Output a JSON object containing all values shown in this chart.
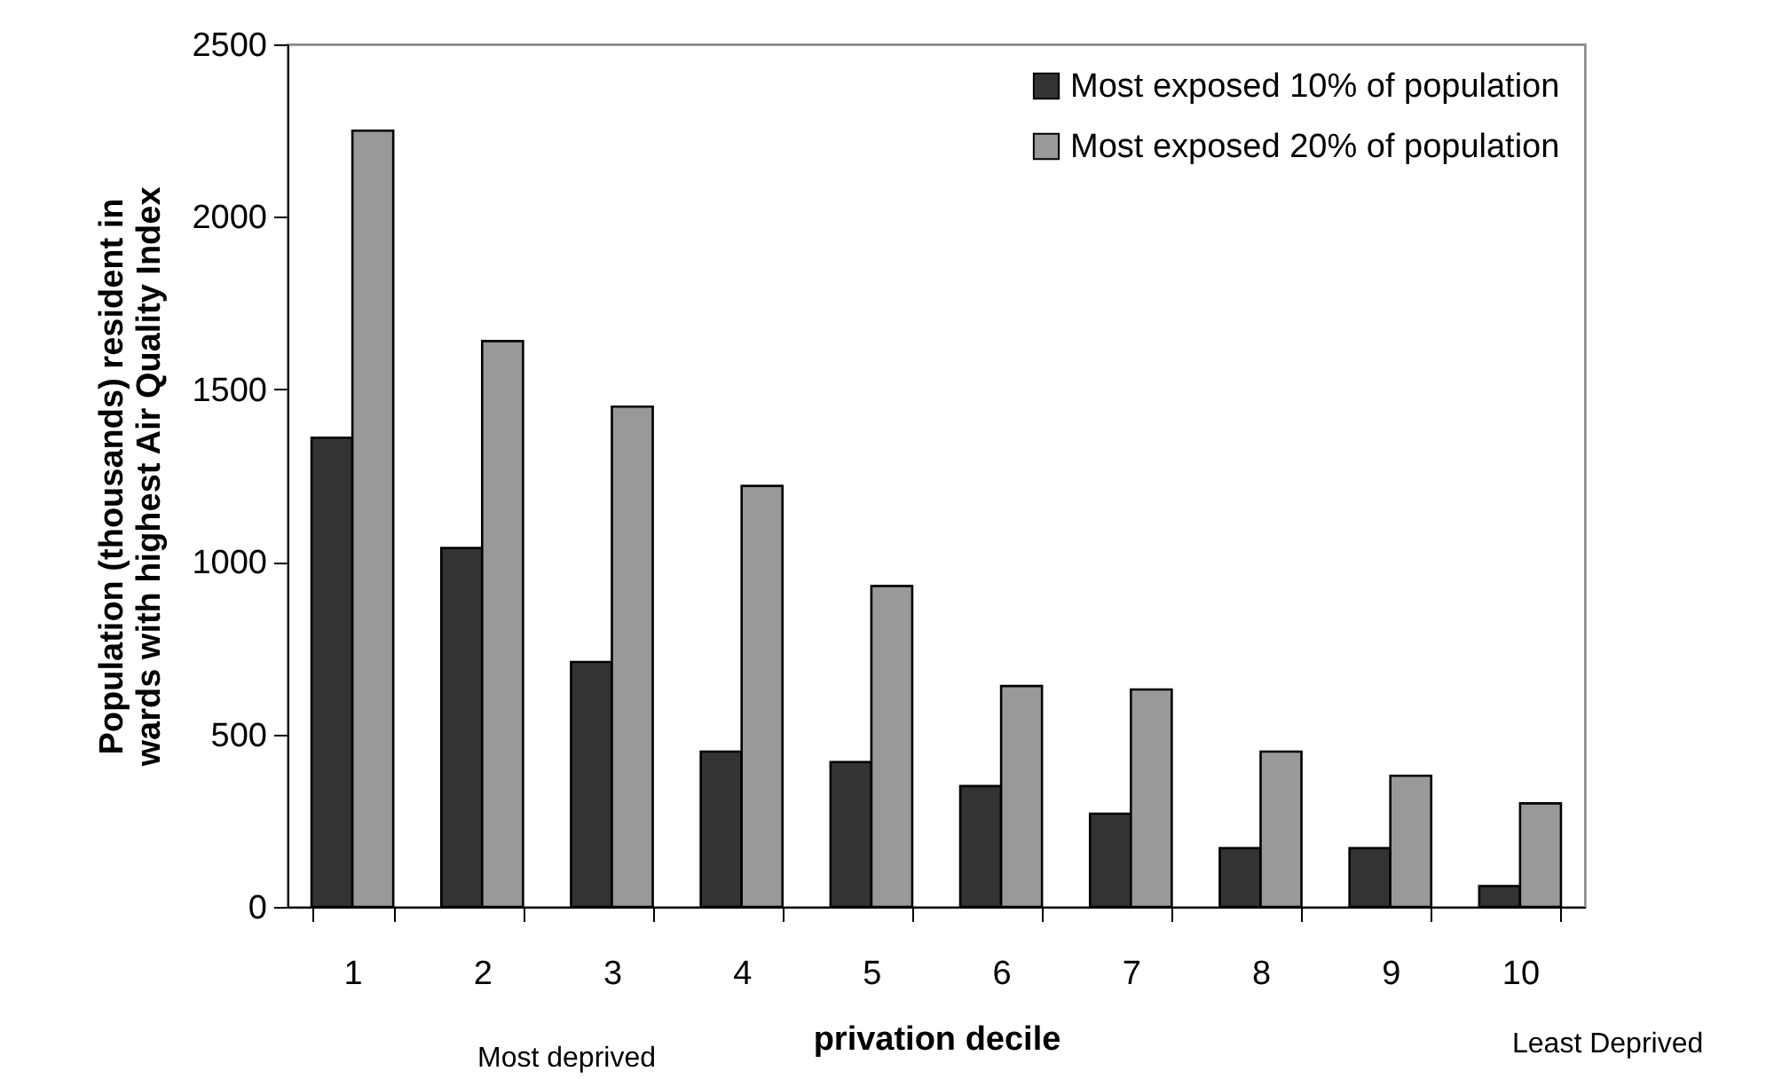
{
  "chart_data": {
    "type": "bar",
    "xlabel": "privation decile",
    "ylabel": "Population (thousands) resident in wards with highest Air Quality Index",
    "categories": [
      "1",
      "2",
      "3",
      "4",
      "5",
      "6",
      "7",
      "8",
      "9",
      "10"
    ],
    "series": [
      {
        "name": "Most exposed 10% of population",
        "color": "#333333",
        "values": [
          1360,
          1040,
          710,
          450,
          420,
          350,
          270,
          170,
          170,
          60
        ]
      },
      {
        "name": "Most exposed 20% of population",
        "color": "#999999",
        "values": [
          2250,
          1640,
          1450,
          1220,
          930,
          640,
          630,
          450,
          380,
          300
        ]
      }
    ],
    "ylim": [
      0,
      2500
    ],
    "yticks": [
      0,
      500,
      1000,
      1500,
      2000,
      2500
    ],
    "grid": false,
    "legend": "top right",
    "annotations": [
      "Most deprived",
      "Least Deprived"
    ]
  }
}
